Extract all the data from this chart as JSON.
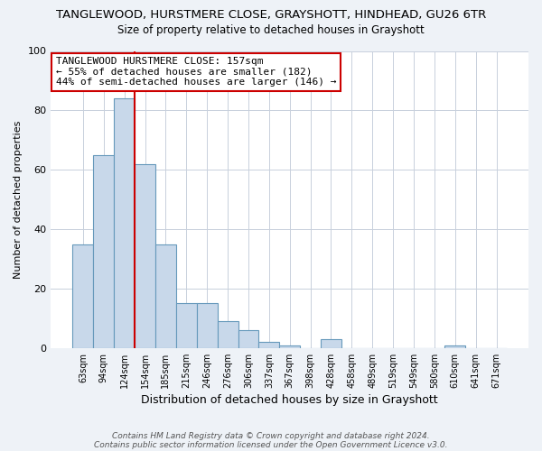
{
  "title1": "TANGLEWOOD, HURSTMERE CLOSE, GRAYSHOTT, HINDHEAD, GU26 6TR",
  "title2": "Size of property relative to detached houses in Grayshott",
  "xlabel": "Distribution of detached houses by size in Grayshott",
  "ylabel": "Number of detached properties",
  "bin_labels": [
    "63sqm",
    "94sqm",
    "124sqm",
    "154sqm",
    "185sqm",
    "215sqm",
    "246sqm",
    "276sqm",
    "306sqm",
    "337sqm",
    "367sqm",
    "398sqm",
    "428sqm",
    "458sqm",
    "489sqm",
    "519sqm",
    "549sqm",
    "580sqm",
    "610sqm",
    "641sqm",
    "671sqm"
  ],
  "bar_heights": [
    35,
    65,
    84,
    62,
    35,
    15,
    15,
    9,
    6,
    2,
    1,
    0,
    3,
    0,
    0,
    0,
    0,
    0,
    1,
    0,
    0
  ],
  "bar_color": "#c8d8ea",
  "bar_edgecolor": "#6699bb",
  "property_line_index": 2,
  "property_line_color": "#cc0000",
  "annotation_line1": "TANGLEWOOD HURSTMERE CLOSE: 157sqm",
  "annotation_line2": "← 55% of detached houses are smaller (182)",
  "annotation_line3": "44% of semi-detached houses are larger (146) →",
  "annotation_box_edgecolor": "#cc0000",
  "ylim": [
    0,
    100
  ],
  "yticks": [
    0,
    20,
    40,
    60,
    80,
    100
  ],
  "footer_line1": "Contains HM Land Registry data © Crown copyright and database right 2024.",
  "footer_line2": "Contains public sector information licensed under the Open Government Licence v3.0.",
  "background_color": "#eef2f7",
  "plot_background_color": "#ffffff",
  "grid_color": "#c8d0dc"
}
